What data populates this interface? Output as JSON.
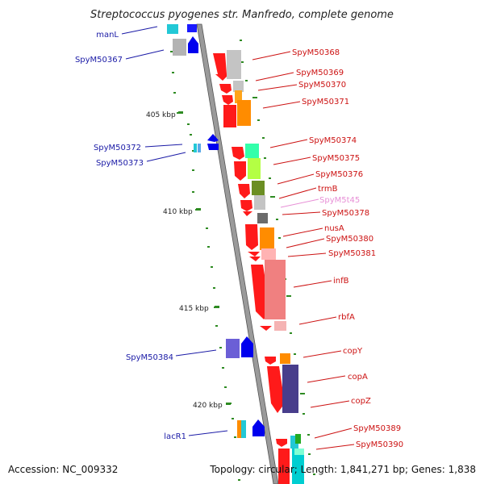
{
  "title": "Streptococcus pyogenes str. Manfredo, complete genome",
  "accession": "Accession: NC_009332",
  "topology": "Topology: circular; Length: 1,841,271 bp; Genes: 1,838",
  "ticks": [
    "405 kbp",
    "410 kbp",
    "415 kbp",
    "420 kbp"
  ],
  "colors": {
    "reverse_label": "#1a1aa6",
    "forward_label": "#cc1111",
    "trna_label": "#e78fd6",
    "cds": "#ff0000",
    "backbone": "#999999",
    "gc_skew": "#2e8b22"
  },
  "genes_reverse": [
    {
      "name": "manL"
    },
    {
      "name": "SpyM50367"
    },
    {
      "name": "SpyM50372"
    },
    {
      "name": "SpyM50373"
    },
    {
      "name": "SpyM50384"
    },
    {
      "name": "lacR1"
    }
  ],
  "genes_forward": [
    {
      "name": "SpyM50368"
    },
    {
      "name": "SpyM50369"
    },
    {
      "name": "SpyM50370"
    },
    {
      "name": "SpyM50371"
    },
    {
      "name": "SpyM50374"
    },
    {
      "name": "SpyM50375"
    },
    {
      "name": "SpyM50376"
    },
    {
      "name": "trmB"
    },
    {
      "name": "SpyM5t45"
    },
    {
      "name": "SpyM50378"
    },
    {
      "name": "nusA"
    },
    {
      "name": "SpyM50380"
    },
    {
      "name": "SpyM50381"
    },
    {
      "name": "infB"
    },
    {
      "name": "rbfA"
    },
    {
      "name": "copY"
    },
    {
      "name": "copA"
    },
    {
      "name": "copZ"
    },
    {
      "name": "SpyM50389"
    },
    {
      "name": "SpyM50390"
    }
  ]
}
